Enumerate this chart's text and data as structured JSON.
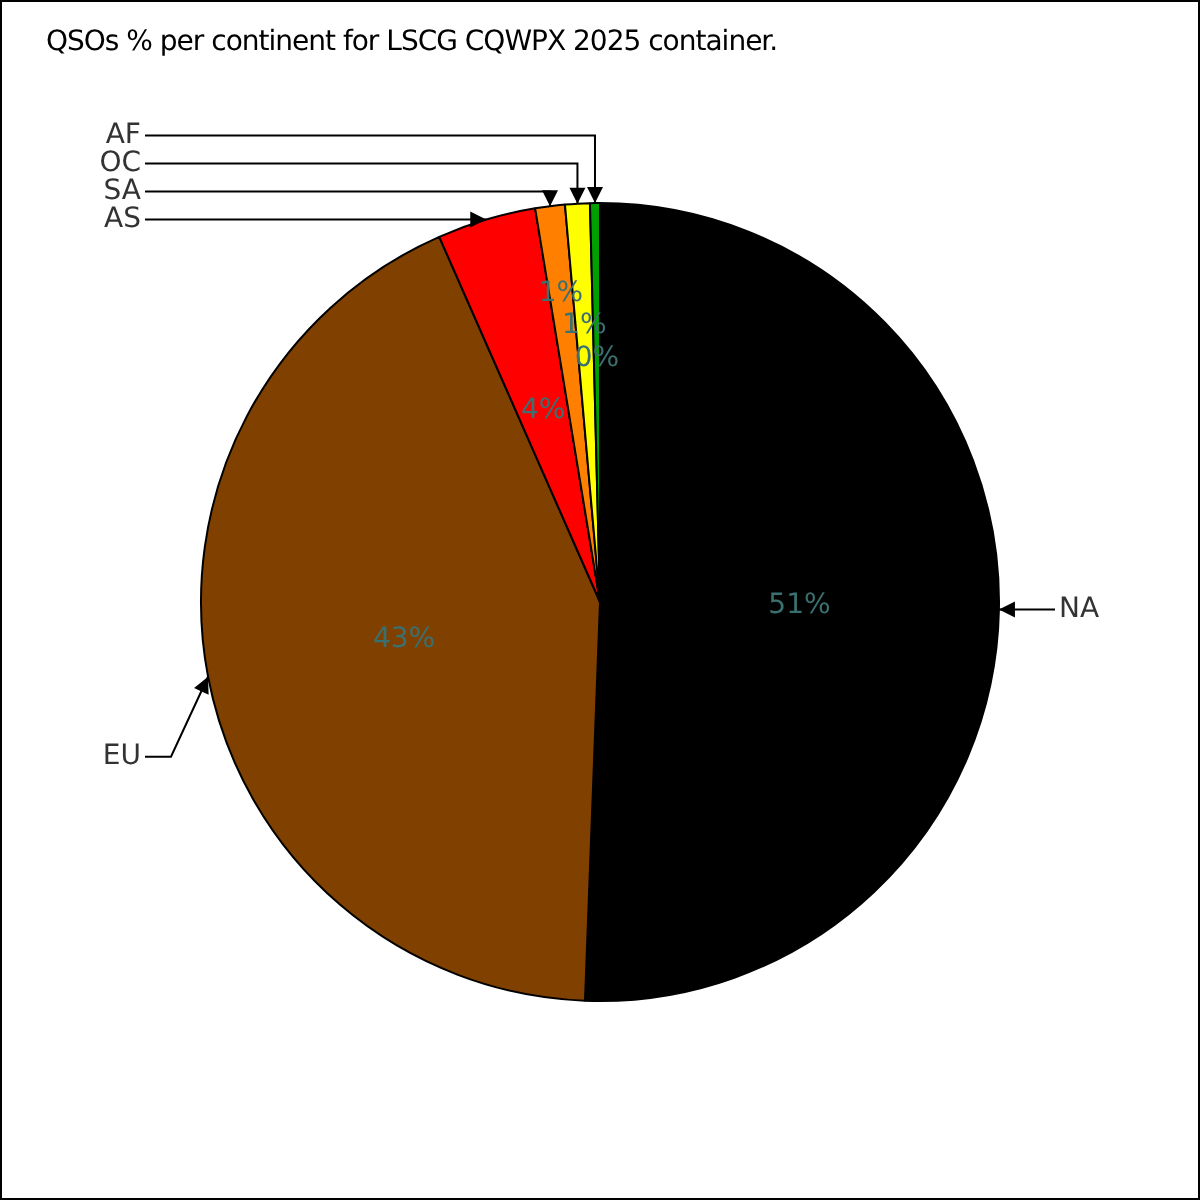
{
  "chart_data": {
    "type": "pie",
    "title": "QSOs % per continent for LSCG CQWPX 2025 container.",
    "categories": [
      "NA",
      "EU",
      "AS",
      "SA",
      "OC",
      "AF"
    ],
    "values": [
      50.6,
      42.8,
      4.0,
      1.2,
      1.0,
      0.4
    ],
    "colors": [
      "#000000",
      "#804000",
      "#ff0000",
      "#ff8000",
      "#ffff00",
      "#00a000"
    ],
    "value_labels": [
      "51%",
      "43%",
      "4%",
      "1%",
      "1%",
      "0%"
    ]
  }
}
